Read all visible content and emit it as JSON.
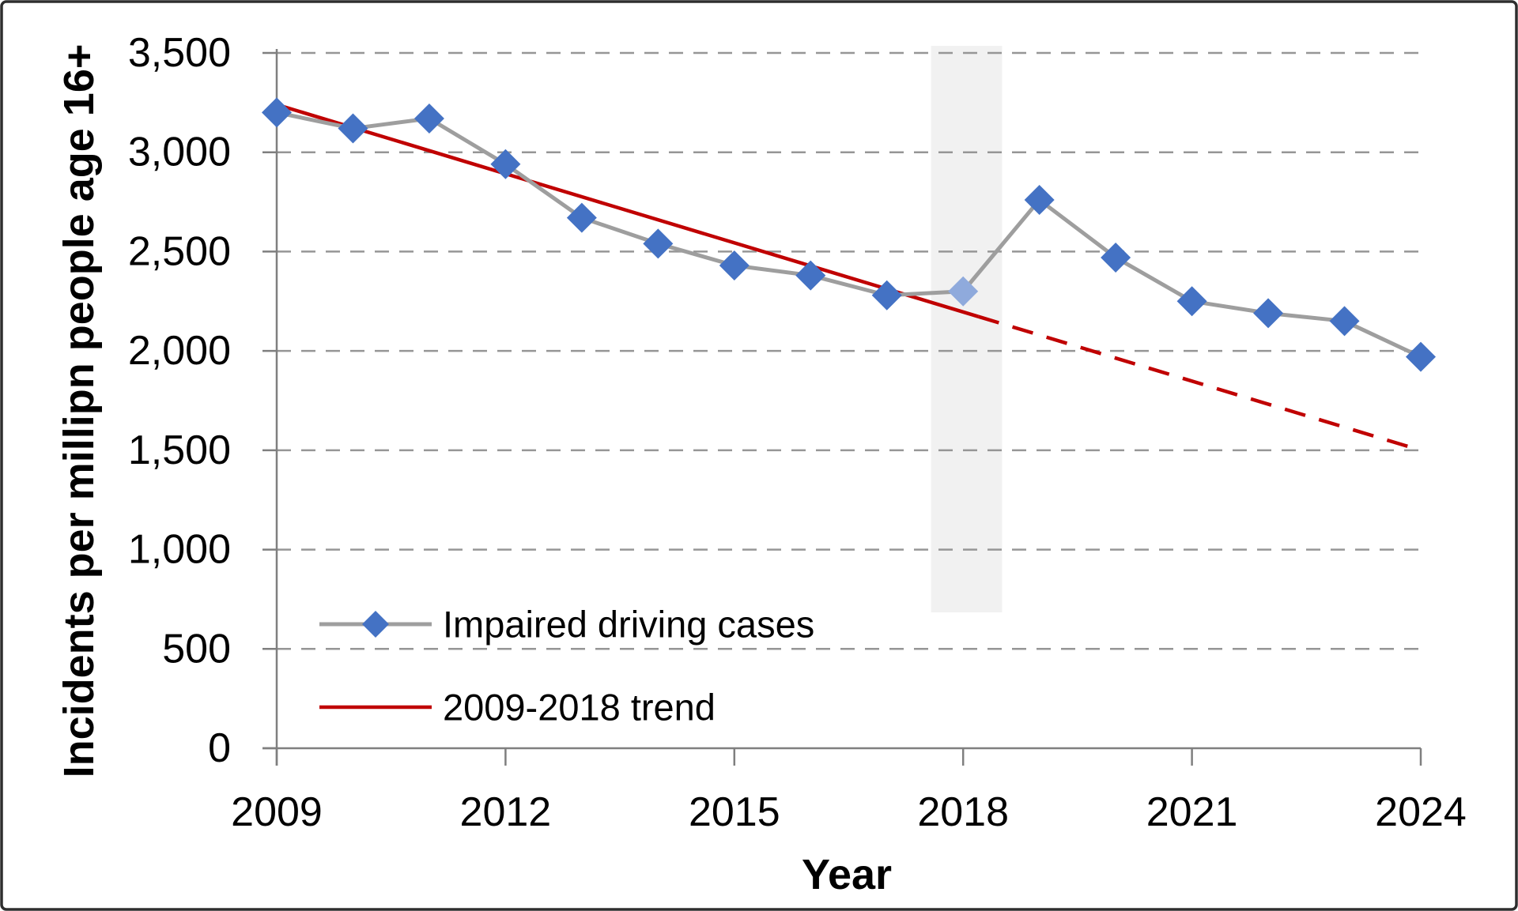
{
  "figure": {
    "background": "#ffffff",
    "border_color": "#2e2e2e"
  },
  "chart_data": {
    "type": "line",
    "title": "",
    "xlabel": "Year",
    "ylabel": "Incidents per millipn people age 16+",
    "xlim": [
      2009,
      2024
    ],
    "ylim": [
      0,
      3500
    ],
    "grid": "horizontal-dashed",
    "grid_color": "#969696",
    "axis_color": "#7f7f7f",
    "x_tick_years": [
      2009,
      2012,
      2015,
      2018,
      2021,
      2024
    ],
    "y_tick_values": [
      0,
      500,
      1000,
      1500,
      2000,
      2500,
      3000,
      3500
    ],
    "y_tick_labels": [
      "0",
      "500",
      "1,000",
      "1,500",
      "2,000",
      "2,500",
      "3,000",
      "3,500"
    ],
    "series": [
      {
        "name": "Impaired driving cases",
        "kind": "line-with-diamond-markers",
        "line_color": "#9e9e9e",
        "marker_color": "#4472c4",
        "highlight_year": 2018,
        "highlight_marker_color": "#8faadc",
        "x": [
          2009,
          2010,
          2011,
          2012,
          2013,
          2014,
          2015,
          2016,
          2017,
          2018,
          2019,
          2020,
          2021,
          2022,
          2023,
          2024
        ],
        "values": [
          3200,
          3120,
          3170,
          2940,
          2670,
          2540,
          2430,
          2380,
          2280,
          2300,
          2760,
          2470,
          2250,
          2190,
          2150,
          1970
        ]
      },
      {
        "name": "2009-2018 trend",
        "kind": "trend-line",
        "color": "#c00000",
        "start_year": 2009,
        "start_value": 3240,
        "end_year": 2024,
        "end_value": 1500,
        "solid_until_year": 2018.2,
        "dashed_after": true
      }
    ],
    "highlight_band": {
      "from_year": 2017.58,
      "to_year": 2018.51,
      "color": "#f1f1f1"
    },
    "legend_position": "inside-lower-left"
  }
}
